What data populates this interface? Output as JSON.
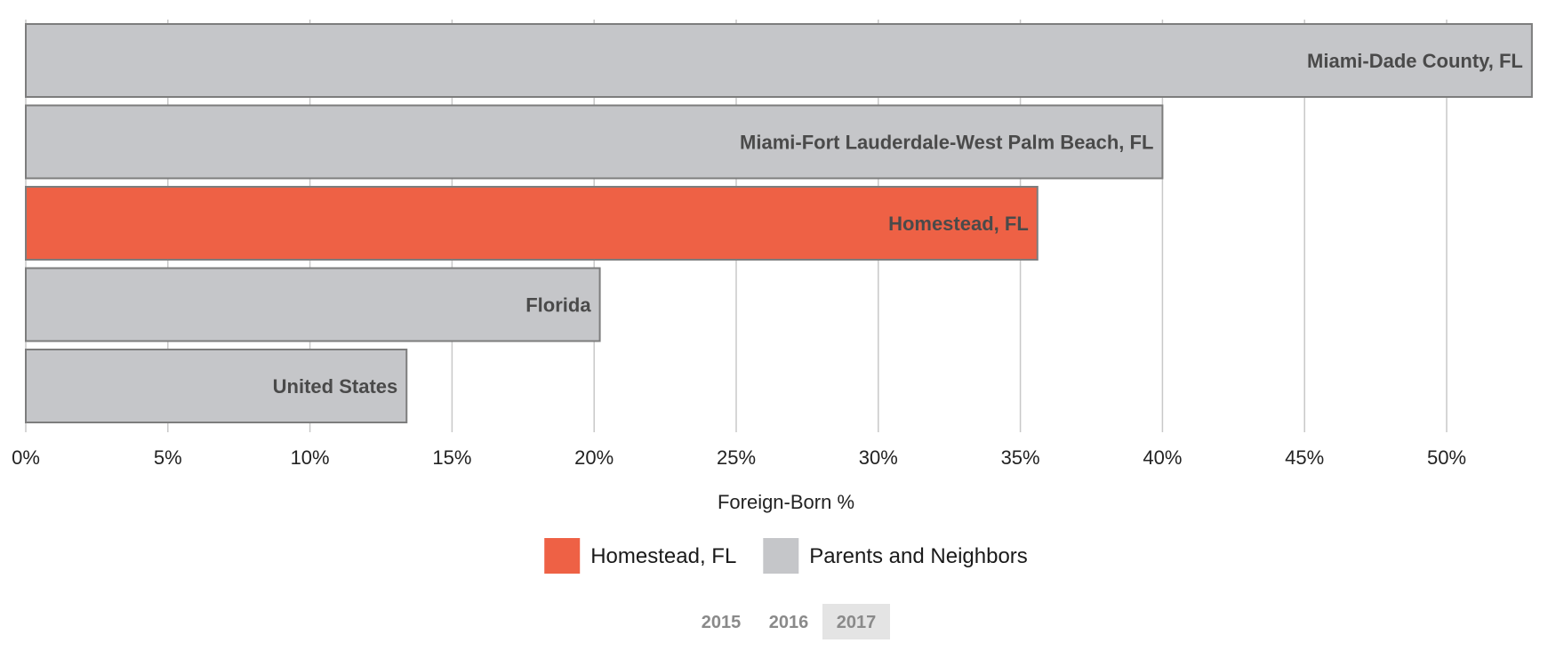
{
  "chart_data": {
    "type": "bar",
    "orientation": "horizontal",
    "categories": [
      "Miami-Dade County, FL",
      "Miami-Fort Lauderdale-West Palm Beach, FL",
      "Homestead, FL",
      "Florida",
      "United States"
    ],
    "values": [
      53.0,
      40.0,
      35.6,
      20.2,
      13.4
    ],
    "highlight": [
      false,
      false,
      true,
      false,
      false
    ],
    "xlabel": "Foreign-Born %",
    "xlim": [
      0,
      53
    ],
    "xticks": [
      0,
      5,
      10,
      15,
      20,
      25,
      30,
      35,
      40,
      45,
      50
    ],
    "xtick_labels": [
      "0%",
      "5%",
      "10%",
      "15%",
      "20%",
      "25%",
      "30%",
      "35%",
      "40%",
      "45%",
      "50%"
    ],
    "grid": true,
    "legend": {
      "placement": "bottom-center",
      "entries": [
        {
          "label": "Homestead, FL",
          "color": "#ee6145"
        },
        {
          "label": "Parents and Neighbors",
          "color": "#c5c6c9"
        }
      ]
    },
    "colors": {
      "highlight": "#ee6145",
      "default": "#c5c6c9"
    }
  },
  "year_tabs": {
    "items": [
      "2015",
      "2016",
      "2017"
    ],
    "selected": "2017"
  }
}
